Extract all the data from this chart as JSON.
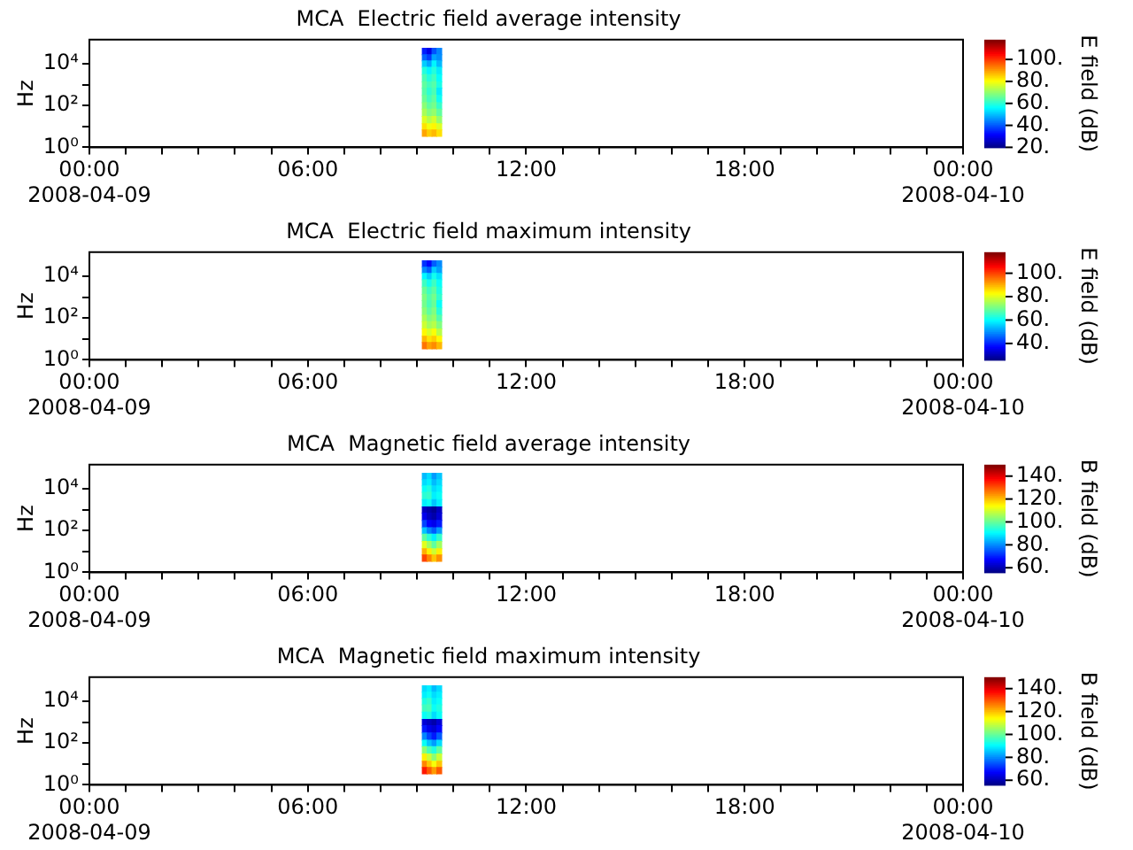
{
  "chart_data": [
    {
      "type": "heatmap",
      "title": "MCA  Electric field average intensity",
      "ylabel": "Hz",
      "clabel": "E field (dB)",
      "log": "y",
      "grid": false,
      "xlim": [
        "2008-04-09T00:00",
        "2008-04-10T00:00"
      ],
      "xticks": [
        {
          "value": "2008-04-09T00:00",
          "label": "00:00\n2008-04-09"
        },
        {
          "value": "2008-04-09T01:00",
          "label": null
        },
        {
          "value": "2008-04-09T02:00",
          "label": null
        },
        {
          "value": "2008-04-09T03:00",
          "label": null
        },
        {
          "value": "2008-04-09T04:00",
          "label": null
        },
        {
          "value": "2008-04-09T05:00",
          "label": null
        },
        {
          "value": "2008-04-09T06:00",
          "label": "06:00"
        },
        {
          "value": "2008-04-09T07:00",
          "label": null
        },
        {
          "value": "2008-04-09T08:00",
          "label": null
        },
        {
          "value": "2008-04-09T09:00",
          "label": null
        },
        {
          "value": "2008-04-09T10:00",
          "label": null
        },
        {
          "value": "2008-04-09T11:00",
          "label": null
        },
        {
          "value": "2008-04-09T12:00",
          "label": "12:00"
        },
        {
          "value": "2008-04-09T13:00",
          "label": null
        },
        {
          "value": "2008-04-09T14:00",
          "label": null
        },
        {
          "value": "2008-04-09T15:00",
          "label": null
        },
        {
          "value": "2008-04-09T16:00",
          "label": null
        },
        {
          "value": "2008-04-09T17:00",
          "label": null
        },
        {
          "value": "2008-04-09T18:00",
          "label": "18:00"
        },
        {
          "value": "2008-04-09T19:00",
          "label": null
        },
        {
          "value": "2008-04-09T20:00",
          "label": null
        },
        {
          "value": "2008-04-09T21:00",
          "label": null
        },
        {
          "value": "2008-04-09T22:00",
          "label": null
        },
        {
          "value": "2008-04-09T23:00",
          "label": null
        },
        {
          "value": "2008-04-10T00:00",
          "label": "00:00\n2008-04-10"
        }
      ],
      "ylim": [
        1,
        140000
      ],
      "yticks": [
        {
          "value": 1,
          "label": "10⁰"
        },
        {
          "value": 10,
          "label": null
        },
        {
          "value": 100,
          "label": "10²"
        },
        {
          "value": 1000,
          "label": null
        },
        {
          "value": 10000,
          "label": "10⁴"
        }
      ],
      "clim": [
        20,
        118
      ],
      "cticks": [
        {
          "value": 20,
          "label": "20."
        },
        {
          "value": 40,
          "label": "40."
        },
        {
          "value": 60,
          "label": "60."
        },
        {
          "value": 80,
          "label": "80."
        },
        {
          "value": 100,
          "label": "100."
        }
      ],
      "x": [
        "2008-04-09T09:12",
        "2008-04-09T09:20",
        "2008-04-09T09:28",
        "2008-04-09T09:36"
      ],
      "y": [
        40000,
        20000,
        10000,
        5000,
        2000,
        1000,
        500,
        200,
        100,
        50,
        20,
        10,
        5
      ],
      "cells": [
        [
          35,
          30,
          40,
          45
        ],
        [
          42,
          38,
          48,
          46
        ],
        [
          52,
          48,
          56,
          50
        ],
        [
          60,
          56,
          60,
          55
        ],
        [
          64,
          60,
          63,
          57
        ],
        [
          66,
          63,
          65,
          59
        ],
        [
          65,
          61,
          64,
          55
        ],
        [
          67,
          63,
          66,
          58
        ],
        [
          70,
          66,
          68,
          62
        ],
        [
          73,
          69,
          71,
          66
        ],
        [
          78,
          74,
          77,
          71
        ],
        [
          84,
          80,
          82,
          78
        ],
        [
          90,
          86,
          88,
          84
        ]
      ]
    },
    {
      "type": "heatmap",
      "title": "MCA  Electric field maximum intensity",
      "ylabel": "Hz",
      "clabel": "E field (dB)",
      "log": "y",
      "grid": false,
      "xlim": [
        "2008-04-09T00:00",
        "2008-04-10T00:00"
      ],
      "xticks": [
        {
          "value": "2008-04-09T00:00",
          "label": "00:00\n2008-04-09"
        },
        {
          "value": "2008-04-09T01:00",
          "label": null
        },
        {
          "value": "2008-04-09T02:00",
          "label": null
        },
        {
          "value": "2008-04-09T03:00",
          "label": null
        },
        {
          "value": "2008-04-09T04:00",
          "label": null
        },
        {
          "value": "2008-04-09T05:00",
          "label": null
        },
        {
          "value": "2008-04-09T06:00",
          "label": "06:00"
        },
        {
          "value": "2008-04-09T07:00",
          "label": null
        },
        {
          "value": "2008-04-09T08:00",
          "label": null
        },
        {
          "value": "2008-04-09T09:00",
          "label": null
        },
        {
          "value": "2008-04-09T10:00",
          "label": null
        },
        {
          "value": "2008-04-09T11:00",
          "label": null
        },
        {
          "value": "2008-04-09T12:00",
          "label": "12:00"
        },
        {
          "value": "2008-04-09T13:00",
          "label": null
        },
        {
          "value": "2008-04-09T14:00",
          "label": null
        },
        {
          "value": "2008-04-09T15:00",
          "label": null
        },
        {
          "value": "2008-04-09T16:00",
          "label": null
        },
        {
          "value": "2008-04-09T17:00",
          "label": null
        },
        {
          "value": "2008-04-09T18:00",
          "label": "18:00"
        },
        {
          "value": "2008-04-09T19:00",
          "label": null
        },
        {
          "value": "2008-04-09T20:00",
          "label": null
        },
        {
          "value": "2008-04-09T21:00",
          "label": null
        },
        {
          "value": "2008-04-09T22:00",
          "label": null
        },
        {
          "value": "2008-04-09T23:00",
          "label": null
        },
        {
          "value": "2008-04-10T00:00",
          "label": "00:00\n2008-04-10"
        }
      ],
      "ylim": [
        1,
        140000
      ],
      "yticks": [
        {
          "value": 1,
          "label": "10⁰"
        },
        {
          "value": 10,
          "label": null
        },
        {
          "value": 100,
          "label": "10²"
        },
        {
          "value": 1000,
          "label": null
        },
        {
          "value": 10000,
          "label": "10⁴"
        }
      ],
      "clim": [
        26,
        118
      ],
      "cticks": [
        {
          "value": 40,
          "label": "40."
        },
        {
          "value": 60,
          "label": "60."
        },
        {
          "value": 80,
          "label": "80."
        },
        {
          "value": 100,
          "label": "100."
        }
      ],
      "x": [
        "2008-04-09T09:12",
        "2008-04-09T09:20",
        "2008-04-09T09:28",
        "2008-04-09T09:36"
      ],
      "y": [
        40000,
        20000,
        10000,
        5000,
        2000,
        1000,
        500,
        200,
        100,
        50,
        20,
        10,
        5
      ],
      "cells": [
        [
          42,
          38,
          46,
          50
        ],
        [
          50,
          46,
          56,
          52
        ],
        [
          60,
          56,
          62,
          58
        ],
        [
          66,
          62,
          66,
          61
        ],
        [
          70,
          66,
          69,
          63
        ],
        [
          72,
          68,
          71,
          65
        ],
        [
          71,
          67,
          70,
          61
        ],
        [
          73,
          69,
          72,
          64
        ],
        [
          76,
          72,
          74,
          68
        ],
        [
          79,
          75,
          77,
          72
        ],
        [
          84,
          80,
          83,
          77
        ],
        [
          90,
          86,
          88,
          84
        ],
        [
          96,
          92,
          94,
          90
        ]
      ]
    },
    {
      "type": "heatmap",
      "title": "MCA  Magnetic field average intensity",
      "ylabel": "Hz",
      "clabel": "B field (dB)",
      "log": "y",
      "grid": false,
      "xlim": [
        "2008-04-09T00:00",
        "2008-04-10T00:00"
      ],
      "xticks": [
        {
          "value": "2008-04-09T00:00",
          "label": "00:00\n2008-04-09"
        },
        {
          "value": "2008-04-09T01:00",
          "label": null
        },
        {
          "value": "2008-04-09T02:00",
          "label": null
        },
        {
          "value": "2008-04-09T03:00",
          "label": null
        },
        {
          "value": "2008-04-09T04:00",
          "label": null
        },
        {
          "value": "2008-04-09T05:00",
          "label": null
        },
        {
          "value": "2008-04-09T06:00",
          "label": "06:00"
        },
        {
          "value": "2008-04-09T07:00",
          "label": null
        },
        {
          "value": "2008-04-09T08:00",
          "label": null
        },
        {
          "value": "2008-04-09T09:00",
          "label": null
        },
        {
          "value": "2008-04-09T10:00",
          "label": null
        },
        {
          "value": "2008-04-09T11:00",
          "label": null
        },
        {
          "value": "2008-04-09T12:00",
          "label": "12:00"
        },
        {
          "value": "2008-04-09T13:00",
          "label": null
        },
        {
          "value": "2008-04-09T14:00",
          "label": null
        },
        {
          "value": "2008-04-09T15:00",
          "label": null
        },
        {
          "value": "2008-04-09T16:00",
          "label": null
        },
        {
          "value": "2008-04-09T17:00",
          "label": null
        },
        {
          "value": "2008-04-09T18:00",
          "label": "18:00"
        },
        {
          "value": "2008-04-09T19:00",
          "label": null
        },
        {
          "value": "2008-04-09T20:00",
          "label": null
        },
        {
          "value": "2008-04-09T21:00",
          "label": null
        },
        {
          "value": "2008-04-09T22:00",
          "label": null
        },
        {
          "value": "2008-04-09T23:00",
          "label": null
        },
        {
          "value": "2008-04-10T00:00",
          "label": "00:00\n2008-04-10"
        }
      ],
      "ylim": [
        1,
        140000
      ],
      "yticks": [
        {
          "value": 1,
          "label": "10⁰"
        },
        {
          "value": 10,
          "label": null
        },
        {
          "value": 100,
          "label": "10²"
        },
        {
          "value": 1000,
          "label": null
        },
        {
          "value": 10000,
          "label": "10⁴"
        }
      ],
      "clim": [
        56,
        150
      ],
      "cticks": [
        {
          "value": 60,
          "label": "60."
        },
        {
          "value": 80,
          "label": "80."
        },
        {
          "value": 100,
          "label": "100."
        },
        {
          "value": 120,
          "label": "120."
        },
        {
          "value": 140,
          "label": "140."
        }
      ],
      "x": [
        "2008-04-09T09:12",
        "2008-04-09T09:20",
        "2008-04-09T09:28",
        "2008-04-09T09:36"
      ],
      "y": [
        40000,
        20000,
        10000,
        5000,
        2000,
        1000,
        500,
        200,
        100,
        50,
        20,
        10,
        5
      ],
      "cells": [
        [
          85,
          88,
          82,
          86
        ],
        [
          88,
          90,
          85,
          88
        ],
        [
          92,
          94,
          88,
          90
        ],
        [
          95,
          96,
          90,
          92
        ],
        [
          90,
          92,
          86,
          90
        ],
        [
          62,
          60,
          58,
          62
        ],
        [
          66,
          62,
          60,
          64
        ],
        [
          74,
          68,
          66,
          70
        ],
        [
          86,
          80,
          76,
          82
        ],
        [
          100,
          95,
          90,
          96
        ],
        [
          112,
          106,
          100,
          106
        ],
        [
          122,
          116,
          110,
          116
        ],
        [
          132,
          126,
          120,
          125
        ]
      ]
    },
    {
      "type": "heatmap",
      "title": "MCA  Magnetic field maximum intensity",
      "ylabel": "Hz",
      "clabel": "B field (dB)",
      "log": "y",
      "grid": false,
      "xlim": [
        "2008-04-09T00:00",
        "2008-04-10T00:00"
      ],
      "xticks": [
        {
          "value": "2008-04-09T00:00",
          "label": "00:00\n2008-04-09"
        },
        {
          "value": "2008-04-09T01:00",
          "label": null
        },
        {
          "value": "2008-04-09T02:00",
          "label": null
        },
        {
          "value": "2008-04-09T03:00",
          "label": null
        },
        {
          "value": "2008-04-09T04:00",
          "label": null
        },
        {
          "value": "2008-04-09T05:00",
          "label": null
        },
        {
          "value": "2008-04-09T06:00",
          "label": "06:00"
        },
        {
          "value": "2008-04-09T07:00",
          "label": null
        },
        {
          "value": "2008-04-09T08:00",
          "label": null
        },
        {
          "value": "2008-04-09T09:00",
          "label": null
        },
        {
          "value": "2008-04-09T10:00",
          "label": null
        },
        {
          "value": "2008-04-09T11:00",
          "label": null
        },
        {
          "value": "2008-04-09T12:00",
          "label": "12:00"
        },
        {
          "value": "2008-04-09T13:00",
          "label": null
        },
        {
          "value": "2008-04-09T14:00",
          "label": null
        },
        {
          "value": "2008-04-09T15:00",
          "label": null
        },
        {
          "value": "2008-04-09T16:00",
          "label": null
        },
        {
          "value": "2008-04-09T17:00",
          "label": null
        },
        {
          "value": "2008-04-09T18:00",
          "label": "18:00"
        },
        {
          "value": "2008-04-09T19:00",
          "label": null
        },
        {
          "value": "2008-04-09T20:00",
          "label": null
        },
        {
          "value": "2008-04-09T21:00",
          "label": null
        },
        {
          "value": "2008-04-09T22:00",
          "label": null
        },
        {
          "value": "2008-04-09T23:00",
          "label": null
        },
        {
          "value": "2008-04-10T00:00",
          "label": "00:00\n2008-04-10"
        }
      ],
      "ylim": [
        1,
        140000
      ],
      "yticks": [
        {
          "value": 1,
          "label": "10⁰"
        },
        {
          "value": 10,
          "label": null
        },
        {
          "value": 100,
          "label": "10²"
        },
        {
          "value": 1000,
          "label": null
        },
        {
          "value": 10000,
          "label": "10⁴"
        }
      ],
      "clim": [
        56,
        150
      ],
      "cticks": [
        {
          "value": 60,
          "label": "60."
        },
        {
          "value": 80,
          "label": "80."
        },
        {
          "value": 100,
          "label": "100."
        },
        {
          "value": 120,
          "label": "120."
        },
        {
          "value": 140,
          "label": "140."
        }
      ],
      "x": [
        "2008-04-09T09:12",
        "2008-04-09T09:20",
        "2008-04-09T09:28",
        "2008-04-09T09:36"
      ],
      "y": [
        40000,
        20000,
        10000,
        5000,
        2000,
        1000,
        500,
        200,
        100,
        50,
        20,
        10,
        5
      ],
      "cells": [
        [
          88,
          90,
          85,
          88
        ],
        [
          90,
          92,
          88,
          90
        ],
        [
          94,
          96,
          90,
          92
        ],
        [
          97,
          98,
          92,
          94
        ],
        [
          92,
          94,
          88,
          92
        ],
        [
          64,
          62,
          60,
          64
        ],
        [
          70,
          66,
          64,
          68
        ],
        [
          80,
          74,
          70,
          76
        ],
        [
          92,
          86,
          82,
          88
        ],
        [
          104,
          98,
          94,
          100
        ],
        [
          116,
          110,
          104,
          110
        ],
        [
          126,
          120,
          114,
          120
        ],
        [
          136,
          130,
          124,
          130
        ]
      ]
    }
  ]
}
